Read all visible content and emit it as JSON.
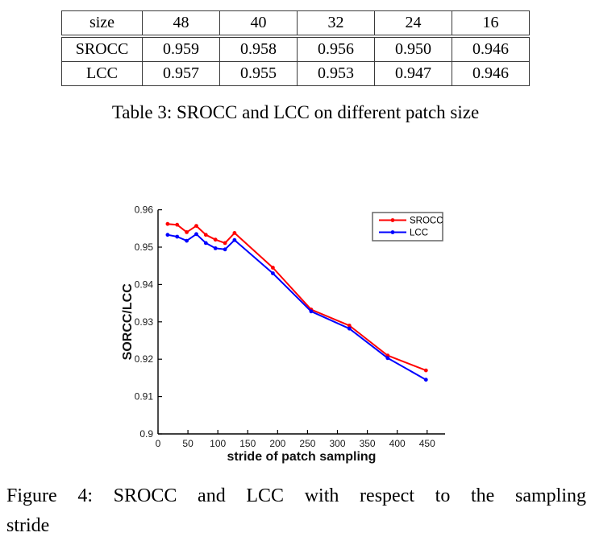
{
  "table": {
    "columns": [
      "size",
      "48",
      "40",
      "32",
      "24",
      "16"
    ],
    "rows": [
      {
        "label": "SROCC",
        "values": [
          "0.959",
          "0.958",
          "0.956",
          "0.950",
          "0.946"
        ]
      },
      {
        "label": "LCC",
        "values": [
          "0.957",
          "0.955",
          "0.953",
          "0.947",
          "0.946"
        ]
      }
    ],
    "caption": "Table 3: SROCC and LCC on different patch size"
  },
  "figure": {
    "caption_line1": "Figure 4:  SROCC and LCC with respect to the sampling",
    "caption_line2": "stride"
  },
  "chart_data": {
    "type": "line",
    "title": "",
    "xlabel": "stride of patch sampling",
    "ylabel": "SORCC/LCC",
    "xlim": [
      0,
      480
    ],
    "ylim": [
      0.9,
      0.96
    ],
    "xticks": [
      0,
      50,
      100,
      150,
      200,
      250,
      300,
      350,
      400,
      450
    ],
    "xtick_labels": [
      "0",
      "50",
      "100",
      "150",
      "200",
      "250",
      "300",
      "350",
      "400",
      "450"
    ],
    "yticks": [
      0.9,
      0.91,
      0.92,
      0.93,
      0.94,
      0.95,
      0.96
    ],
    "ytick_labels": [
      "0.9",
      "0.91",
      "0.92",
      "0.93",
      "0.94",
      "0.95",
      "0.96"
    ],
    "grid": false,
    "legend_position": "top-right",
    "x": [
      16,
      32,
      48,
      64,
      80,
      96,
      112,
      128,
      192,
      256,
      320,
      384,
      448
    ],
    "series": [
      {
        "name": "SROCC",
        "color": "#ff0000",
        "values": [
          0.9562,
          0.956,
          0.954,
          0.9557,
          0.9533,
          0.952,
          0.9511,
          0.9538,
          0.9445,
          0.9333,
          0.929,
          0.921,
          0.917
        ]
      },
      {
        "name": "LCC",
        "color": "#0000ff",
        "values": [
          0.9533,
          0.9528,
          0.9517,
          0.9535,
          0.9511,
          0.9497,
          0.9494,
          0.9519,
          0.943,
          0.9328,
          0.9282,
          0.9203,
          0.9145
        ]
      }
    ],
    "axis_color": "#000000"
  }
}
